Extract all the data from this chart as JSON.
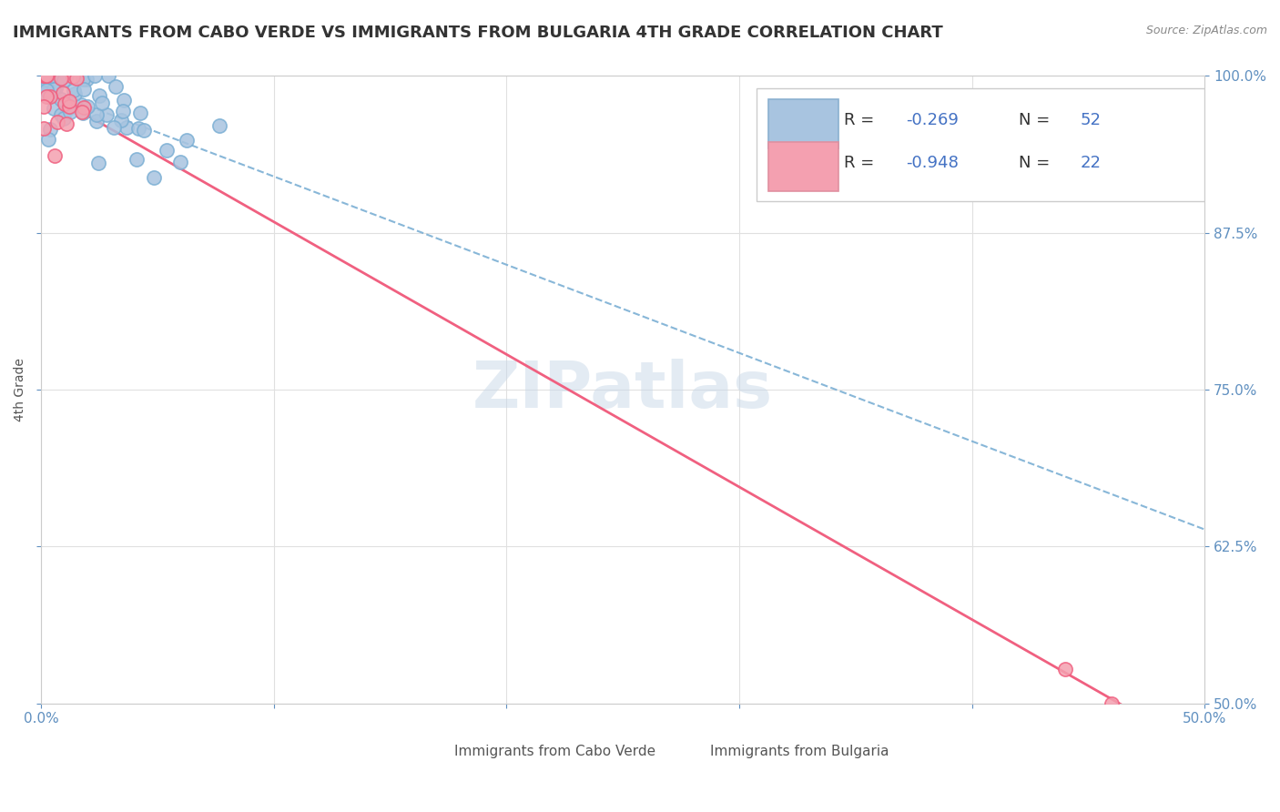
{
  "title": "IMMIGRANTS FROM CABO VERDE VS IMMIGRANTS FROM BULGARIA 4TH GRADE CORRELATION CHART",
  "source": "Source: ZipAtlas.com",
  "ylabel": "4th Grade",
  "xlim": [
    0.0,
    0.5
  ],
  "ylim": [
    0.5,
    1.0
  ],
  "cabo_verde_R": -0.269,
  "cabo_verde_N": 52,
  "bulgaria_R": -0.948,
  "bulgaria_N": 22,
  "cabo_verde_color": "#a8c4e0",
  "bulgaria_color": "#f4a0b0",
  "cabo_verde_line_color": "#7bafd4",
  "bulgaria_line_color": "#f06080",
  "watermark": "ZIPatlas",
  "watermark_color": "#c8d8e8",
  "background_color": "#ffffff",
  "grid_color": "#e0e0e0",
  "legend_label_cv": "Immigrants from Cabo Verde",
  "legend_label_bg": "Immigrants from Bulgaria"
}
